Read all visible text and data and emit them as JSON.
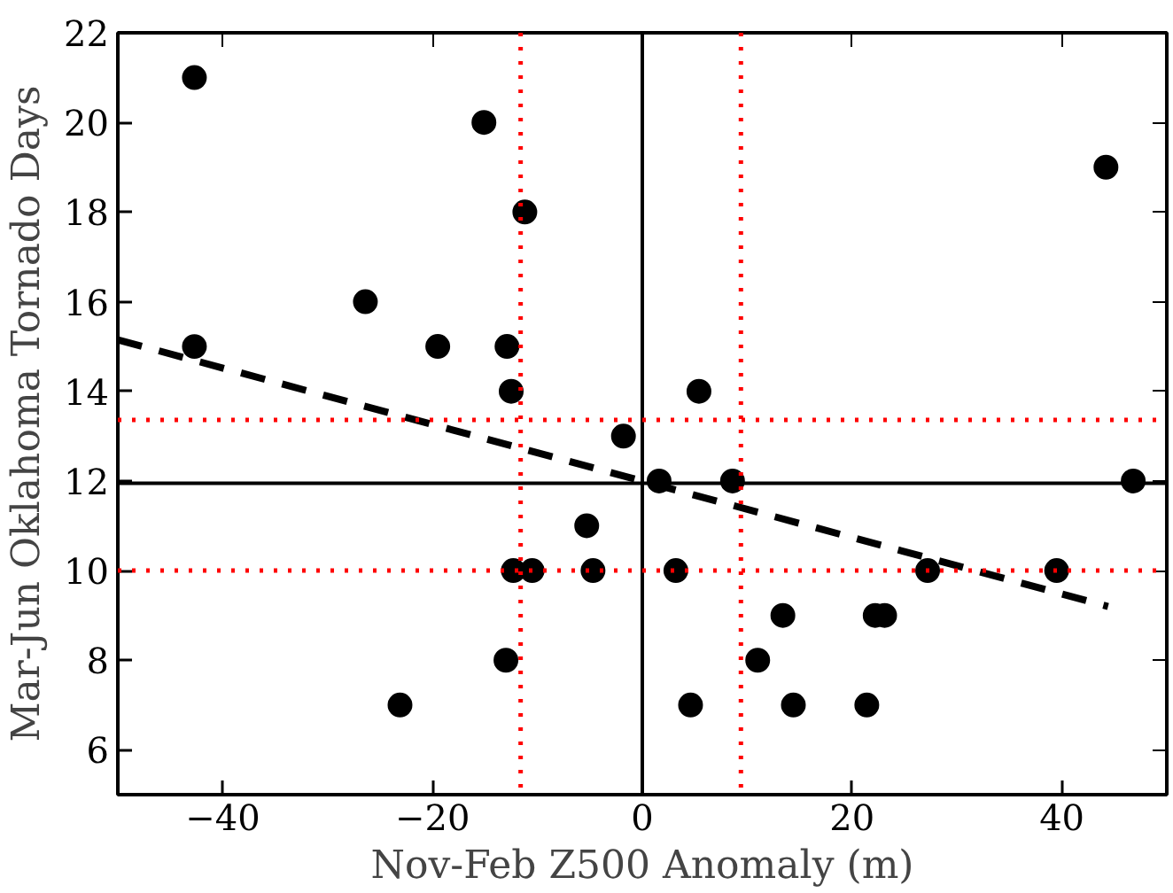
{
  "chart_data": {
    "type": "scatter",
    "xlabel": "Nov-Feb Z500 Anomaly (m)",
    "ylabel": "Mar-Jun Oklahoma Tornado Days",
    "xlim": [
      -50,
      50
    ],
    "ylim": [
      5,
      22
    ],
    "xticks": [
      {
        "value": -40,
        "label": "−40"
      },
      {
        "value": -20,
        "label": "−20"
      },
      0,
      20,
      40
    ],
    "yticks": [
      6,
      8,
      10,
      12,
      14,
      16,
      18,
      20,
      22
    ],
    "grid": false,
    "marker": "circle",
    "series": [
      {
        "color": "#000000",
        "x": [
          -42.7,
          -15.1,
          -11.2,
          -26.4,
          -42.7,
          -19.5,
          -12.9,
          -12.5,
          -1.8,
          5.4,
          44.2,
          1.6,
          -5.3,
          -12.3,
          -10.5,
          -4.7,
          -13.0,
          -23.1,
          8.6,
          46.8,
          3.2,
          27.2,
          39.5,
          13.4,
          22.2,
          23.1,
          11.0,
          4.6,
          14.4,
          21.4
        ],
        "values": [
          21,
          20,
          18,
          16,
          15,
          15,
          15,
          14,
          13,
          14,
          19,
          12,
          11,
          10,
          10,
          10,
          8,
          7,
          12,
          12,
          10,
          10,
          10,
          9,
          9,
          9,
          8,
          7,
          7,
          7
        ]
      },
      {
        "type": "line",
        "color": "#000000",
        "line_style": "dashed",
        "marker": "none",
        "x": [
          -50,
          44.4
        ],
        "values": [
          15.15,
          9.2
        ]
      }
    ],
    "ref_lines": [
      {
        "axis": "x",
        "value": 0,
        "color": "#000000",
        "line_style": "solid"
      },
      {
        "axis": "y",
        "value": 11.95,
        "color": "#000000",
        "line_style": "solid"
      },
      {
        "axis": "x",
        "value": -11.6,
        "color": "#ff0000",
        "line_style": "dotted"
      },
      {
        "axis": "x",
        "value": 9.4,
        "color": "#ff0000",
        "line_style": "dotted"
      },
      {
        "axis": "y",
        "value": 13.36,
        "color": "#ff0000",
        "line_style": "dotted"
      },
      {
        "axis": "y",
        "value": 10.0,
        "color": "#ff0000",
        "line_style": "dotted"
      }
    ]
  }
}
